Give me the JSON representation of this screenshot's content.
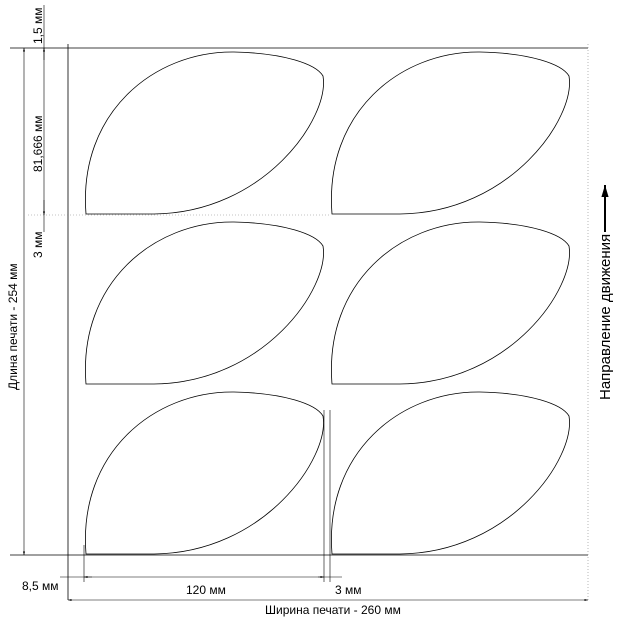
{
  "labels": {
    "top_gap": "1,5 мм",
    "label_height": "81,666 мм",
    "row_gap": "3 мм",
    "print_length": "Длина печати - 254 мм",
    "left_offset": "8,5 мм",
    "label_width": "120 мм",
    "col_gap": "3 мм",
    "print_width": "Ширина печати - 260 мм",
    "direction": "Направление движения"
  },
  "layout_info": {
    "rows": 3,
    "columns": 2,
    "label_count": 6
  }
}
